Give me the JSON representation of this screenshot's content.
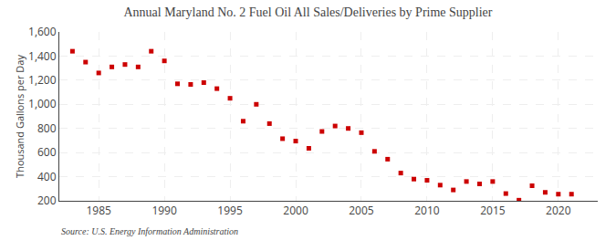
{
  "chart_data": {
    "type": "scatter",
    "title": "Annual Maryland No. 2 Fuel Oil All Sales/Deliveries by Prime Supplier",
    "ylabel": "Thousand Gallons per Day",
    "annotations": [
      "Source: U.S. Energy Information Administration"
    ],
    "x": [
      1983,
      1984,
      1985,
      1986,
      1987,
      1988,
      1989,
      1990,
      1991,
      1992,
      1993,
      1994,
      1995,
      1996,
      1997,
      1998,
      1999,
      2000,
      2001,
      2002,
      2003,
      2004,
      2005,
      2006,
      2007,
      2008,
      2009,
      2010,
      2011,
      2012,
      2013,
      2014,
      2015,
      2016,
      2017,
      2018,
      2019,
      2020,
      2021
    ],
    "values": [
      1440,
      1350,
      1260,
      1310,
      1330,
      1310,
      1440,
      1360,
      1170,
      1165,
      1180,
      1130,
      1050,
      860,
      1000,
      840,
      715,
      695,
      635,
      775,
      820,
      800,
      765,
      610,
      545,
      430,
      380,
      370,
      330,
      290,
      360,
      340,
      360,
      260,
      205,
      325,
      270,
      255,
      255
    ],
    "color": "#cc0000",
    "marker": "square",
    "grid": true,
    "xlim": [
      1982,
      2023
    ],
    "xticks": [
      1985,
      1990,
      1995,
      2000,
      2005,
      2010,
      2015,
      2020
    ],
    "ylim": [
      200,
      1600
    ],
    "yticks": [
      200,
      400,
      600,
      800,
      {
        "value": 1000,
        "label": "1,000"
      },
      {
        "value": 1200,
        "label": "1,200"
      },
      {
        "value": 1400,
        "label": "1,400"
      },
      {
        "value": 1600,
        "label": "1,600"
      }
    ]
  }
}
